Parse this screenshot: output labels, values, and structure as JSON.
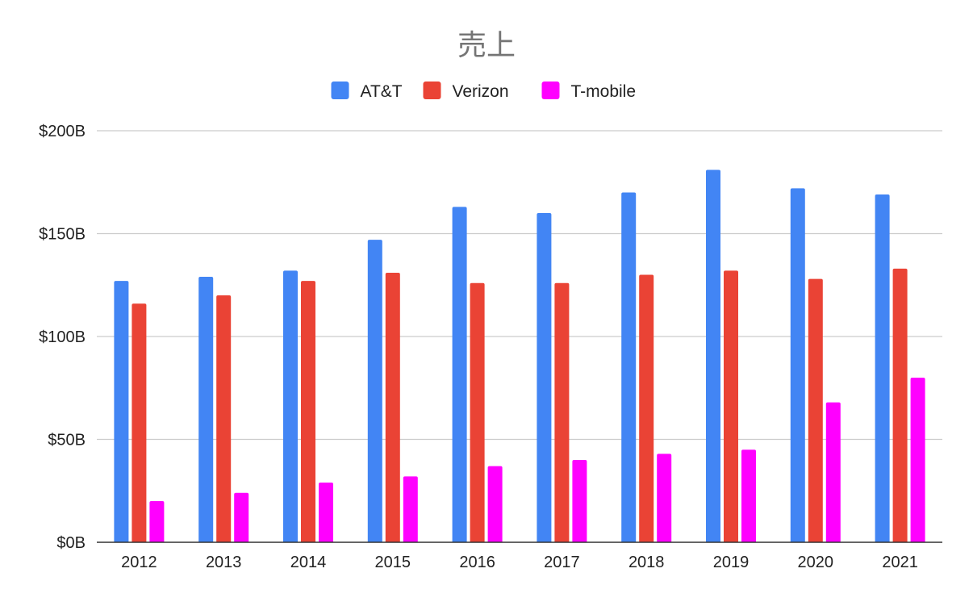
{
  "chart_data": {
    "type": "bar",
    "title": "売上",
    "xlabel": "",
    "ylabel": "",
    "categories": [
      "2012",
      "2013",
      "2014",
      "2015",
      "2016",
      "2017",
      "2018",
      "2019",
      "2020",
      "2021"
    ],
    "series": [
      {
        "name": "AT&T",
        "color": "#4285f4",
        "values": [
          127,
          129,
          132,
          147,
          163,
          160,
          170,
          181,
          172,
          169
        ]
      },
      {
        "name": "Verizon",
        "color": "#ea4335",
        "values": [
          116,
          120,
          127,
          131,
          126,
          126,
          130,
          132,
          128,
          133
        ]
      },
      {
        "name": "T-mobile",
        "color": "#ff00ff",
        "values": [
          20,
          24,
          29,
          32,
          37,
          40,
          43,
          45,
          68,
          80
        ]
      }
    ],
    "ylim": [
      0,
      200
    ],
    "yticks": [
      0,
      50,
      100,
      150,
      200
    ],
    "ytick_labels": [
      "$0B",
      "$50B",
      "$100B",
      "$150B",
      "$200B"
    ],
    "grid": true,
    "legend_position": "top"
  }
}
